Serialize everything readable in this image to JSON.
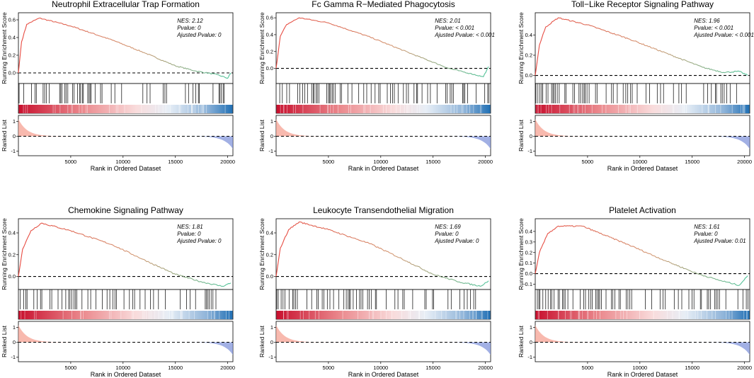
{
  "colors": {
    "curve_start": "#e8473f",
    "curve_end": "#4fc49a",
    "heat_red": "#c8102e",
    "heat_blue": "#2170b5",
    "rank_pos": "#f6a193",
    "rank_neg": "#7a8fd8"
  },
  "chart_data": [
    {
      "type": "line",
      "title": "Neutrophil Extracellular Trap Formation",
      "nes_label": "NES: 2.12",
      "pvalue_label": "Pvalue: 0",
      "adj_label": "Ajusted Pvalue: 0",
      "ylabel_top": "Running Enrichment Score",
      "ylabel_bottom": "Ranked List",
      "xlabel": "Rank in Ordered Dataset",
      "x_ticks": [
        5000,
        10000,
        15000,
        20000
      ],
      "xlim": [
        0,
        20500
      ],
      "ylim_es": [
        -0.12,
        0.68
      ],
      "es_ticks": [
        0.0,
        0.2,
        0.4,
        0.6
      ],
      "es_curve": [
        [
          0,
          0
        ],
        [
          300,
          0.35
        ],
        [
          800,
          0.55
        ],
        [
          2000,
          0.62
        ],
        [
          5000,
          0.53
        ],
        [
          9000,
          0.37
        ],
        [
          12000,
          0.23
        ],
        [
          15000,
          0.08
        ],
        [
          17000,
          0.02
        ],
        [
          19000,
          -0.02
        ],
        [
          20000,
          -0.06
        ],
        [
          20300,
          0
        ]
      ],
      "rank_ticks": [
        -1,
        0,
        1
      ]
    },
    {
      "type": "line",
      "title": "Fc Gamma R−Mediated Phagocytosis",
      "nes_label": "NES: 2.01",
      "pvalue_label": "Pvalue: < 0.001",
      "adj_label": "Ajusted Pvalue: < 0.001",
      "ylabel_top": "Running Enrichment Score",
      "ylabel_bottom": "Ranked List",
      "xlabel": "Rank in Ordered Dataset",
      "x_ticks": [
        5000,
        10000,
        15000,
        20000
      ],
      "xlim": [
        0,
        20500
      ],
      "ylim_es": [
        -0.18,
        0.66
      ],
      "es_curve": [
        [
          0,
          0
        ],
        [
          400,
          0.38
        ],
        [
          1000,
          0.52
        ],
        [
          2200,
          0.6
        ],
        [
          5000,
          0.54
        ],
        [
          9000,
          0.37
        ],
        [
          13000,
          0.17
        ],
        [
          16500,
          0
        ],
        [
          18500,
          -0.06
        ],
        [
          19800,
          -0.1
        ],
        [
          20300,
          0.02
        ]
      ],
      "es_ticks": [
        0.0,
        0.2,
        0.4,
        0.6
      ],
      "rank_ticks": [
        -1,
        0,
        1
      ]
    },
    {
      "type": "line",
      "title": "Toll−Like Receptor Signaling Pathway",
      "nes_label": "NES: 1.96",
      "pvalue_label": "Pvalue: < 0.001",
      "adj_label": "Ajusted Pvalue: < 0.001",
      "ylabel_top": "Running Enrichment Score",
      "ylabel_bottom": "Ranked List",
      "xlabel": "Rank in Ordered Dataset",
      "x_ticks": [
        5000,
        10000,
        15000,
        20000
      ],
      "xlim": [
        0,
        20500
      ],
      "ylim_es": [
        -0.08,
        0.62
      ],
      "es_curve": [
        [
          0,
          0
        ],
        [
          400,
          0.3
        ],
        [
          1000,
          0.48
        ],
        [
          2200,
          0.57
        ],
        [
          5000,
          0.5
        ],
        [
          9000,
          0.36
        ],
        [
          13000,
          0.2
        ],
        [
          16000,
          0.08
        ],
        [
          18000,
          0.03
        ],
        [
          19500,
          0.04
        ],
        [
          20300,
          0
        ]
      ],
      "es_ticks": [
        0.0,
        0.2,
        0.4
      ],
      "rank_ticks": [
        -1,
        0,
        1
      ]
    },
    {
      "type": "line",
      "title": "Chemokine Signaling Pathway",
      "nes_label": "NES: 1.81",
      "pvalue_label": "Pvalue: 0",
      "adj_label": "Ajusted Pvalue: 0",
      "ylabel_top": "Running Enrichment Score",
      "ylabel_bottom": "Ranked List",
      "xlabel": "Rank in Ordered Dataset",
      "x_ticks": [
        5000,
        10000,
        15000,
        20000
      ],
      "xlim": [
        0,
        20500
      ],
      "ylim_es": [
        -0.12,
        0.53
      ],
      "es_curve": [
        [
          0,
          0
        ],
        [
          400,
          0.25
        ],
        [
          1200,
          0.42
        ],
        [
          2200,
          0.49
        ],
        [
          5000,
          0.42
        ],
        [
          9000,
          0.29
        ],
        [
          12500,
          0.13
        ],
        [
          15000,
          0.02
        ],
        [
          17500,
          -0.05
        ],
        [
          19500,
          -0.09
        ],
        [
          20300,
          -0.06
        ]
      ],
      "es_ticks": [
        0.0,
        0.2,
        0.4
      ],
      "rank_ticks": [
        -1,
        0,
        1
      ]
    },
    {
      "type": "line",
      "title": "Leukocyte Transendothelial Migration",
      "nes_label": "NES: 1.69",
      "pvalue_label": "Pvalue: 0",
      "adj_label": "Ajusted Pvalue: 0",
      "ylabel_top": "Running Enrichment Score",
      "ylabel_bottom": "Ranked List",
      "xlabel": "Rank in Ordered Dataset",
      "x_ticks": [
        5000,
        10000,
        15000,
        20000
      ],
      "xlim": [
        0,
        20500
      ],
      "ylim_es": [
        -0.12,
        0.53
      ],
      "es_curve": [
        [
          0,
          0
        ],
        [
          400,
          0.26
        ],
        [
          1200,
          0.43
        ],
        [
          2200,
          0.5
        ],
        [
          5000,
          0.43
        ],
        [
          9000,
          0.3
        ],
        [
          12500,
          0.14
        ],
        [
          15000,
          0.02
        ],
        [
          17500,
          -0.05
        ],
        [
          19500,
          -0.09
        ],
        [
          20300,
          -0.04
        ]
      ],
      "es_ticks": [
        0.0,
        0.2,
        0.4
      ],
      "rank_ticks": [
        -1,
        0,
        1
      ]
    },
    {
      "type": "line",
      "title": "Platelet Activation",
      "nes_label": "NES: 1.61",
      "pvalue_label": "Pvalue: 0",
      "adj_label": "Ajusted Pvalue: 0.01",
      "ylabel_top": "Running Enrichment Score",
      "ylabel_bottom": "Ranked List",
      "xlabel": "Rank in Ordered Dataset",
      "x_ticks": [
        5000,
        10000,
        15000,
        20000
      ],
      "xlim": [
        0,
        20500
      ],
      "ylim_es": [
        -0.15,
        0.52
      ],
      "es_curve": [
        [
          0,
          0
        ],
        [
          400,
          0.2
        ],
        [
          1200,
          0.38
        ],
        [
          2200,
          0.45
        ],
        [
          4500,
          0.45
        ],
        [
          9000,
          0.27
        ],
        [
          12500,
          0.12
        ],
        [
          15500,
          0
        ],
        [
          17500,
          -0.06
        ],
        [
          19500,
          -0.11
        ],
        [
          20300,
          -0.02
        ]
      ],
      "es_ticks": [
        -0.1,
        0.0,
        0.1,
        0.2,
        0.3,
        0.4
      ],
      "rank_ticks": [
        -1,
        0,
        1
      ]
    }
  ]
}
